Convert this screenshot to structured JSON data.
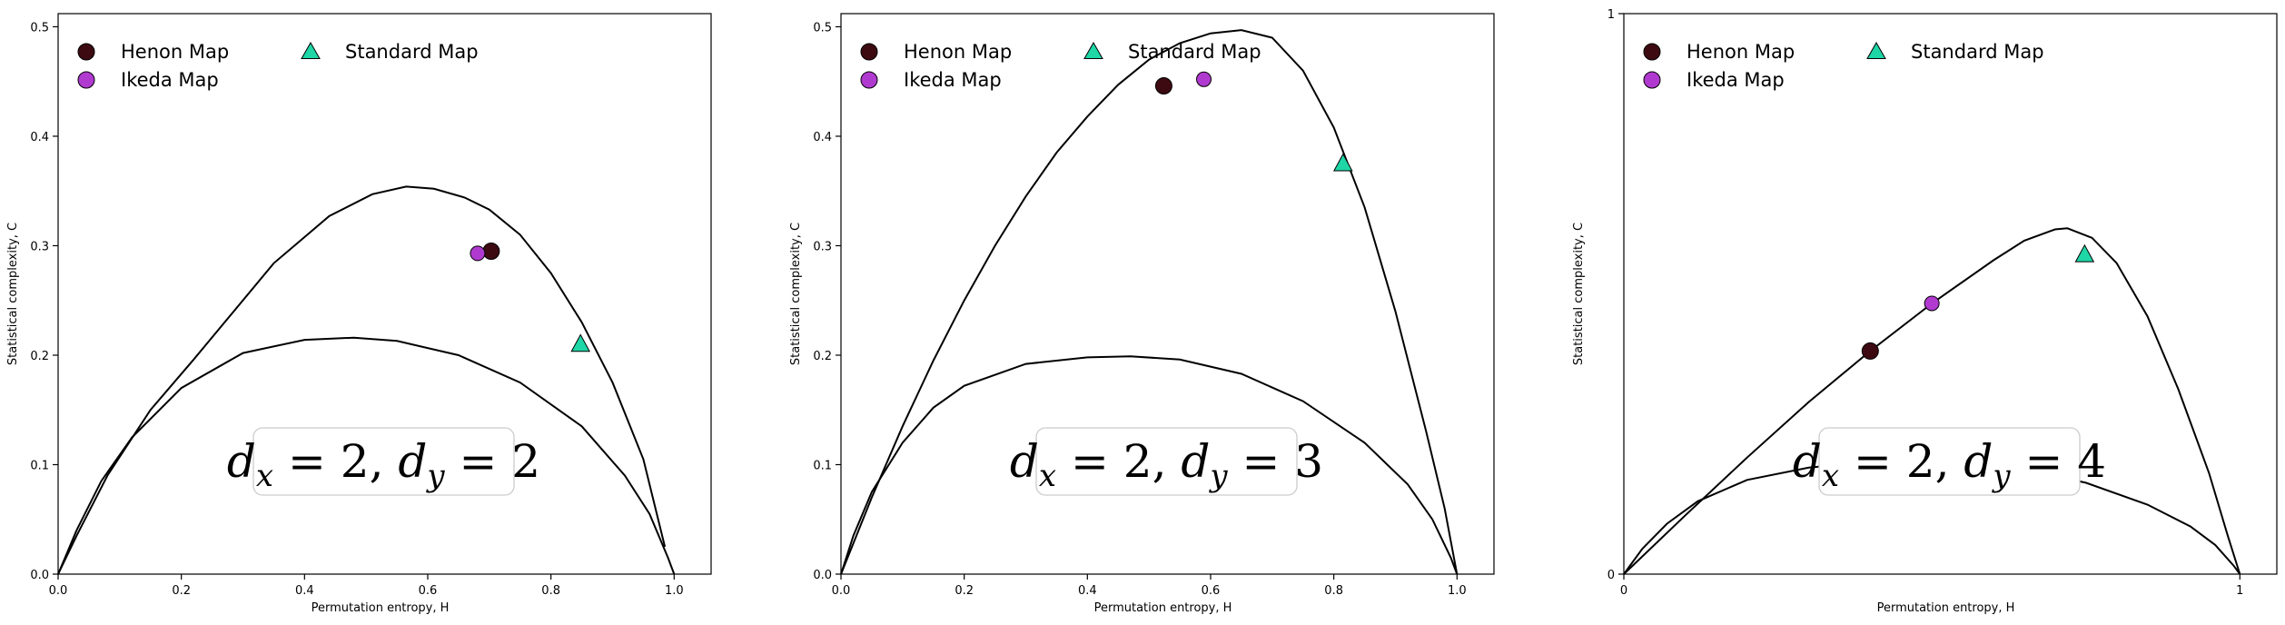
{
  "colors": {
    "henon": "#3d0a12",
    "ikeda": "#b03acf",
    "standard": "#1fd6a6",
    "curve": "#000000"
  },
  "legend_labels": {
    "henon": "Henon Map",
    "ikeda": "Ikeda Map",
    "standard": "Standard Map"
  },
  "chart_data": [
    {
      "type": "scatter",
      "xlabel": "Permutation entropy, H",
      "ylabel": "Statistical complexity, C",
      "annotation": {
        "base": "d",
        "x_sub": "x",
        "y_sub": "y",
        "x_val": "2",
        "y_val": "2"
      },
      "xlim": [
        0,
        1.06
      ],
      "ylim": [
        0,
        0.512
      ],
      "xticks": [
        0,
        0.2,
        0.4,
        0.6,
        0.8,
        1.0
      ],
      "xtick_labels": [
        "0.0",
        "0.2",
        "0.4",
        "0.6",
        "0.8",
        "1.0"
      ],
      "yticks": [
        0,
        0.1,
        0.2,
        0.3,
        0.4,
        0.5
      ],
      "ytick_labels": [
        "0.0",
        "0.1",
        "0.2",
        "0.3",
        "0.4",
        "0.5"
      ],
      "legend_position": "upper-left",
      "series": [
        {
          "key": "henon",
          "name": "Henon Map",
          "marker": "circle",
          "x": [
            0.703
          ],
          "y": [
            0.295
          ]
        },
        {
          "key": "ikeda",
          "name": "Ikeda Map",
          "marker": "circle",
          "x": [
            0.681
          ],
          "y": [
            0.293
          ]
        },
        {
          "key": "standard",
          "name": "Standard Map",
          "marker": "triangle",
          "x": [
            0.848
          ],
          "y": [
            0.21
          ]
        }
      ],
      "upper_curve": [
        [
          0,
          0
        ],
        [
          0.03,
          0.035
        ],
        [
          0.08,
          0.09
        ],
        [
          0.15,
          0.15
        ],
        [
          0.22,
          0.196
        ],
        [
          0.35,
          0.284
        ],
        [
          0.44,
          0.327
        ],
        [
          0.51,
          0.347
        ],
        [
          0.565,
          0.354
        ],
        [
          0.61,
          0.352
        ],
        [
          0.66,
          0.344
        ],
        [
          0.7,
          0.333
        ],
        [
          0.75,
          0.31
        ],
        [
          0.8,
          0.275
        ],
        [
          0.85,
          0.23
        ],
        [
          0.9,
          0.175
        ],
        [
          0.95,
          0.105
        ],
        [
          0.985,
          0.025
        ]
      ],
      "lower_curve": [
        [
          0,
          0
        ],
        [
          0.03,
          0.04
        ],
        [
          0.07,
          0.085
        ],
        [
          0.12,
          0.125
        ],
        [
          0.2,
          0.17
        ],
        [
          0.3,
          0.202
        ],
        [
          0.4,
          0.214
        ],
        [
          0.48,
          0.216
        ],
        [
          0.55,
          0.213
        ],
        [
          0.65,
          0.2
        ],
        [
          0.75,
          0.175
        ],
        [
          0.85,
          0.135
        ],
        [
          0.92,
          0.09
        ],
        [
          0.96,
          0.055
        ],
        [
          0.99,
          0.015
        ],
        [
          1.0,
          0
        ]
      ]
    },
    {
      "type": "scatter",
      "xlabel": "Permutation entropy, H",
      "ylabel": "Statistical complexity, C",
      "annotation": {
        "base": "d",
        "x_sub": "x",
        "y_sub": "y",
        "x_val": "2",
        "y_val": "3"
      },
      "xlim": [
        0,
        1.06
      ],
      "ylim": [
        0,
        0.512
      ],
      "xticks": [
        0,
        0.2,
        0.4,
        0.6,
        0.8,
        1.0
      ],
      "xtick_labels": [
        "0.0",
        "0.2",
        "0.4",
        "0.6",
        "0.8",
        "1.0"
      ],
      "yticks": [
        0,
        0.1,
        0.2,
        0.3,
        0.4,
        0.5
      ],
      "ytick_labels": [
        "0.0",
        "0.1",
        "0.2",
        "0.3",
        "0.4",
        "0.5"
      ],
      "legend_position": "upper-left",
      "series": [
        {
          "key": "henon",
          "name": "Henon Map",
          "marker": "circle",
          "x": [
            0.524
          ],
          "y": [
            0.446
          ]
        },
        {
          "key": "ikeda",
          "name": "Ikeda Map",
          "marker": "circle",
          "x": [
            0.589
          ],
          "y": [
            0.452
          ]
        },
        {
          "key": "standard",
          "name": "Standard Map",
          "marker": "triangle",
          "x": [
            0.815
          ],
          "y": [
            0.375
          ]
        }
      ],
      "upper_curve": [
        [
          0,
          0
        ],
        [
          0.05,
          0.07
        ],
        [
          0.1,
          0.135
        ],
        [
          0.15,
          0.195
        ],
        [
          0.2,
          0.25
        ],
        [
          0.25,
          0.3
        ],
        [
          0.3,
          0.345
        ],
        [
          0.35,
          0.385
        ],
        [
          0.4,
          0.418
        ],
        [
          0.45,
          0.447
        ],
        [
          0.5,
          0.47
        ],
        [
          0.55,
          0.485
        ],
        [
          0.6,
          0.494
        ],
        [
          0.65,
          0.497
        ],
        [
          0.7,
          0.49
        ],
        [
          0.75,
          0.46
        ],
        [
          0.8,
          0.408
        ],
        [
          0.85,
          0.335
        ],
        [
          0.9,
          0.24
        ],
        [
          0.95,
          0.13
        ],
        [
          0.98,
          0.06
        ],
        [
          1.0,
          0
        ]
      ],
      "lower_curve": [
        [
          0,
          0
        ],
        [
          0.02,
          0.035
        ],
        [
          0.05,
          0.075
        ],
        [
          0.1,
          0.12
        ],
        [
          0.15,
          0.152
        ],
        [
          0.2,
          0.172
        ],
        [
          0.3,
          0.192
        ],
        [
          0.4,
          0.198
        ],
        [
          0.47,
          0.199
        ],
        [
          0.55,
          0.196
        ],
        [
          0.65,
          0.183
        ],
        [
          0.75,
          0.158
        ],
        [
          0.85,
          0.12
        ],
        [
          0.92,
          0.082
        ],
        [
          0.96,
          0.05
        ],
        [
          0.99,
          0.015
        ],
        [
          1.0,
          0
        ]
      ]
    },
    {
      "type": "scatter",
      "xlabel": "Permutation entropy, H",
      "ylabel": "Statistical complexity, C",
      "annotation": {
        "base": "d",
        "x_sub": "x",
        "y_sub": "y",
        "x_val": "2",
        "y_val": "4"
      },
      "xlim": [
        0,
        1.06
      ],
      "ylim": [
        0,
        1.0
      ],
      "xticks": [
        0,
        1
      ],
      "xtick_labels": [
        "0",
        "1"
      ],
      "yticks": [
        0,
        1
      ],
      "ytick_labels": [
        "0",
        "1"
      ],
      "legend_position": "upper-left",
      "series": [
        {
          "key": "henon",
          "name": "Henon Map",
          "marker": "circle",
          "x": [
            0.4
          ],
          "y": [
            0.398
          ]
        },
        {
          "key": "ikeda",
          "name": "Ikeda Map",
          "marker": "circle",
          "x": [
            0.5
          ],
          "y": [
            0.483
          ]
        },
        {
          "key": "standard",
          "name": "Standard Map",
          "marker": "triangle",
          "x": [
            0.748
          ],
          "y": [
            0.57
          ]
        }
      ],
      "upper_curve": [
        [
          0,
          0
        ],
        [
          0.1,
          0.105
        ],
        [
          0.2,
          0.208
        ],
        [
          0.3,
          0.307
        ],
        [
          0.4,
          0.398
        ],
        [
          0.5,
          0.483
        ],
        [
          0.6,
          0.56
        ],
        [
          0.65,
          0.595
        ],
        [
          0.7,
          0.615
        ],
        [
          0.72,
          0.617
        ],
        [
          0.76,
          0.6
        ],
        [
          0.8,
          0.555
        ],
        [
          0.85,
          0.46
        ],
        [
          0.9,
          0.33
        ],
        [
          0.95,
          0.18
        ],
        [
          0.98,
          0.07
        ],
        [
          1.0,
          0
        ]
      ],
      "lower_curve": [
        [
          0,
          0
        ],
        [
          0.03,
          0.045
        ],
        [
          0.07,
          0.09
        ],
        [
          0.12,
          0.13
        ],
        [
          0.2,
          0.168
        ],
        [
          0.3,
          0.19
        ],
        [
          0.4,
          0.2
        ],
        [
          0.47,
          0.202
        ],
        [
          0.55,
          0.199
        ],
        [
          0.65,
          0.187
        ],
        [
          0.75,
          0.163
        ],
        [
          0.85,
          0.124
        ],
        [
          0.92,
          0.085
        ],
        [
          0.96,
          0.052
        ],
        [
          0.99,
          0.015
        ],
        [
          1.0,
          0
        ]
      ]
    }
  ]
}
